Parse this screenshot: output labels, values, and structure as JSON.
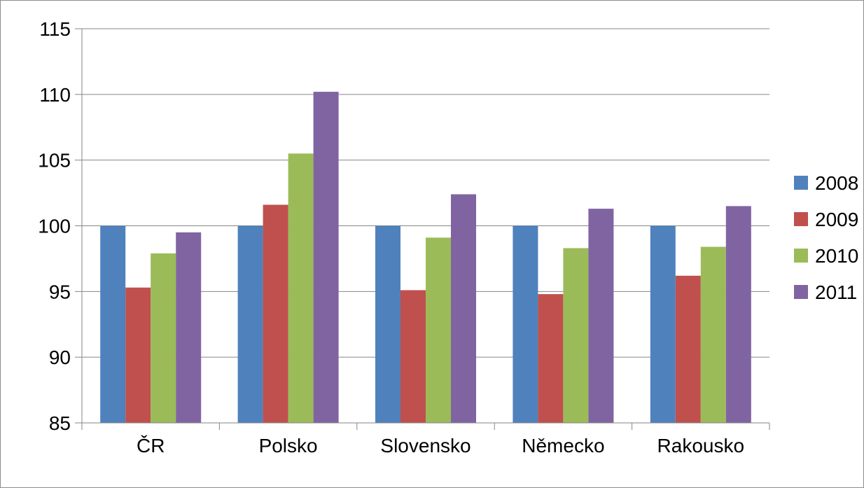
{
  "chart_data": {
    "type": "bar",
    "title": "",
    "xlabel": "",
    "ylabel": "",
    "categories": [
      "ČR",
      "Polsko",
      "Slovensko",
      "Německo",
      "Rakousko"
    ],
    "series": [
      {
        "name": "2008",
        "color": "#4f81bd",
        "values": [
          100,
          100,
          100,
          100,
          100
        ]
      },
      {
        "name": "2009",
        "color": "#c0504d",
        "values": [
          95.3,
          101.6,
          95.1,
          94.8,
          96.2
        ]
      },
      {
        "name": "2010",
        "color": "#9bbb59",
        "values": [
          97.9,
          105.5,
          99.1,
          98.3,
          98.4
        ]
      },
      {
        "name": "2011",
        "color": "#8064a2",
        "values": [
          99.5,
          110.2,
          102.4,
          101.3,
          101.5
        ]
      }
    ],
    "ylim": [
      85,
      115
    ],
    "yticks": [
      "85",
      "90",
      "95",
      "100",
      "105",
      "110",
      "115"
    ],
    "grid": true,
    "legend_position": "right"
  }
}
